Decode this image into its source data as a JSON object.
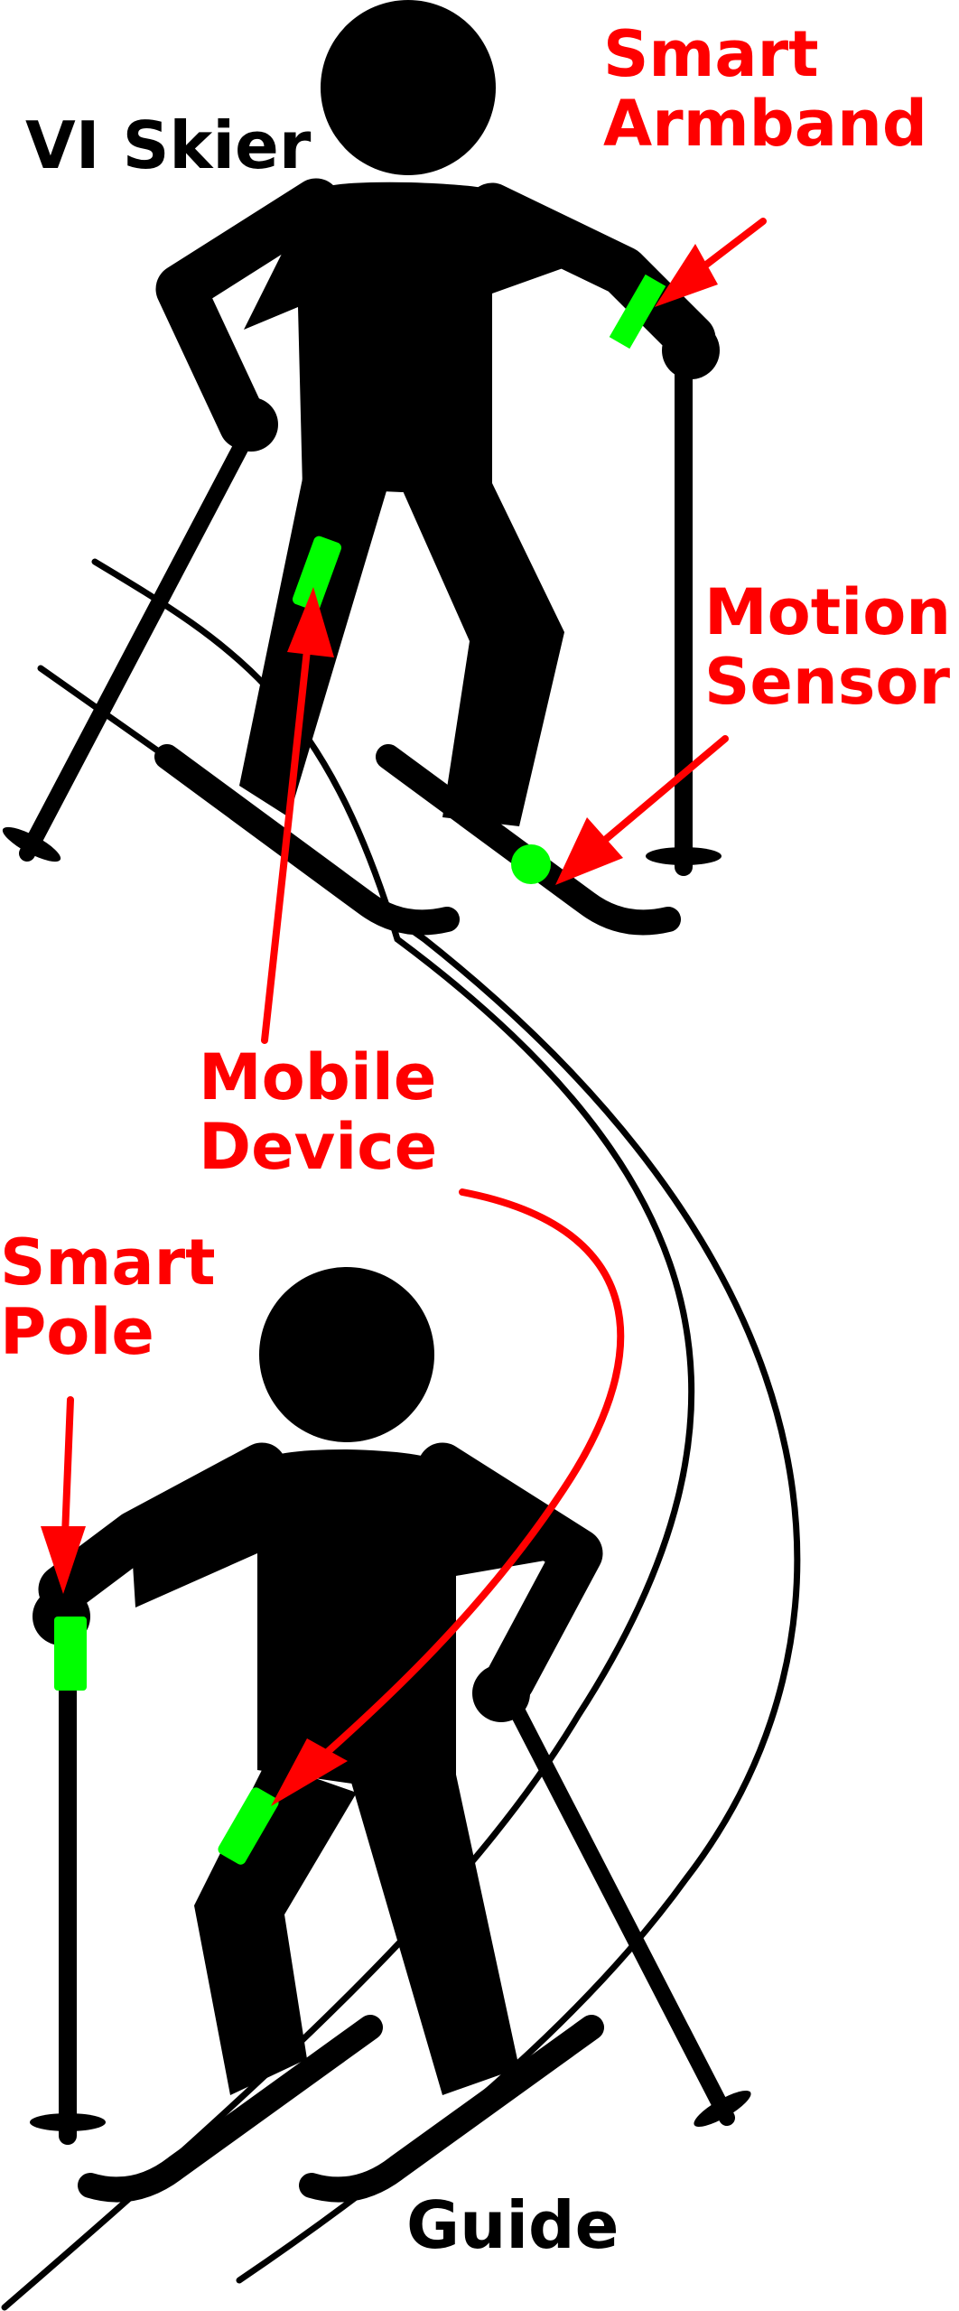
{
  "labels": {
    "vi_skier": "VI Skier",
    "smart_armband": [
      "Smart",
      "Armband"
    ],
    "motion_sensor": [
      "Motion",
      "Sensor"
    ],
    "mobile_device": [
      "Mobile",
      "Device"
    ],
    "smart_pole": [
      "Smart",
      "Pole"
    ],
    "guide": "Guide"
  },
  "colors": {
    "figure": "#000000",
    "annotation": "#ff0000",
    "sensor": "#00ff00",
    "background": "#ffffff"
  },
  "icons": [
    "skier-figure",
    "ski-pole",
    "ski",
    "arrow",
    "sensor-marker"
  ]
}
